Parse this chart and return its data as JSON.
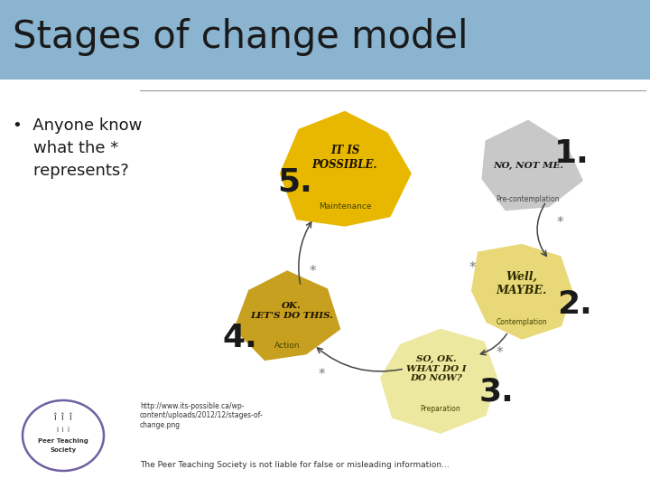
{
  "title": "Stages of change model",
  "title_bg_color": "#8ab4d0",
  "title_text_color": "#1a1a1a",
  "slide_bg_color": "#ffffff",
  "bullet_line1": "•  Anyone know",
  "bullet_line2": "    what the *",
  "bullet_line3": "    represents?",
  "url_text": "http://www.its-possible.ca/wp-\ncontent/uploads/2012/12/stages-of-\nchange.png",
  "footer_text": "The Peer Teaching Society is not liable for false or misleading information...",
  "divider_color": "#999999",
  "stage5_color": "#e8b800",
  "stage4_color": "#c8a020",
  "stage3_color": "#ede8a0",
  "stage2_color": "#e8d878",
  "stage1_color": "#c8c8c8",
  "number_color": "#1a1a1a",
  "label_color": "#555500",
  "arrow_color": "#444444",
  "star_color": "#777777"
}
